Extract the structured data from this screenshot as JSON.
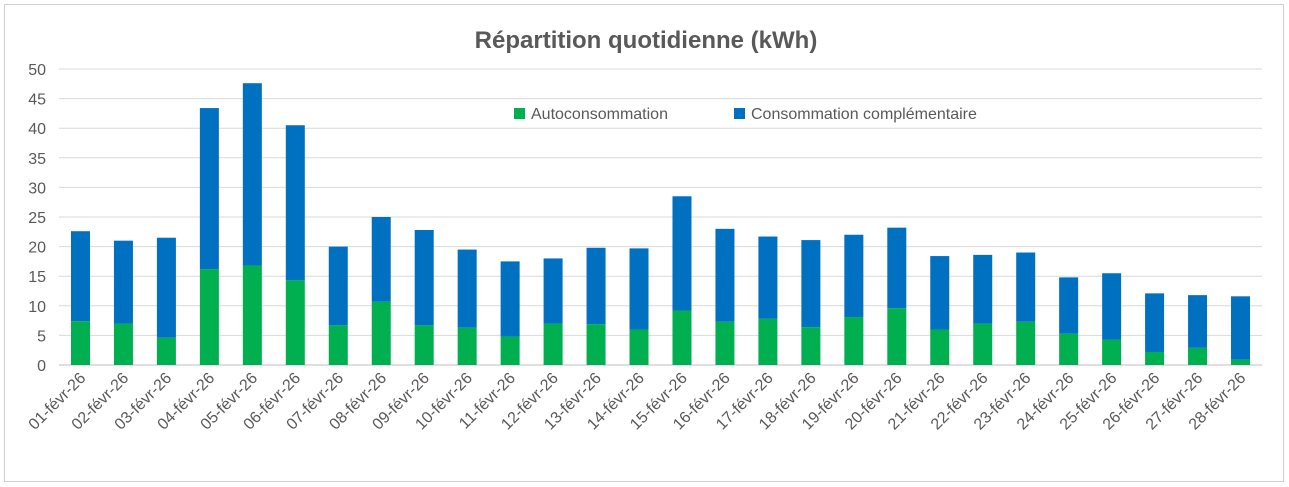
{
  "chart_data": {
    "type": "bar",
    "stacked": true,
    "title": "Répartition quotidienne (kWh)",
    "xlabel": "",
    "ylabel": "",
    "ylim": [
      0,
      50
    ],
    "yticks": [
      0,
      5,
      10,
      15,
      20,
      25,
      30,
      35,
      40,
      45,
      50
    ],
    "grid": true,
    "legend_position": "top-center",
    "categories": [
      "01-févr-26",
      "02-févr-26",
      "03-févr-26",
      "04-févr-26",
      "05-févr-26",
      "06-févr-26",
      "07-févr-26",
      "08-févr-26",
      "09-févr-26",
      "10-févr-26",
      "11-févr-26",
      "12-févr-26",
      "13-févr-26",
      "14-févr-26",
      "15-févr-26",
      "16-févr-26",
      "17-févr-26",
      "18-févr-26",
      "19-févr-26",
      "20-févr-26",
      "21-févr-26",
      "22-févr-26",
      "23-févr-26",
      "24-févr-26",
      "25-févr-26",
      "26-févr-26",
      "27-févr-26",
      "28-févr-26"
    ],
    "series": [
      {
        "name": "Autoconsommation",
        "color": "#00b050",
        "values": [
          7.4,
          7.0,
          4.6,
          16.2,
          16.8,
          14.3,
          6.7,
          10.7,
          6.7,
          6.3,
          4.8,
          7.0,
          6.9,
          6.0,
          9.2,
          7.3,
          7.8,
          6.4,
          8.1,
          9.6,
          6.0,
          7.0,
          7.3,
          5.3,
          4.3,
          2.2,
          2.9,
          0.9
        ]
      },
      {
        "name": "Consommation complémentaire",
        "color": "#0070c0",
        "values": [
          15.2,
          14.0,
          16.9,
          27.2,
          30.8,
          26.2,
          13.3,
          14.3,
          16.1,
          13.2,
          12.7,
          11.0,
          12.9,
          13.7,
          19.3,
          15.7,
          13.9,
          14.7,
          13.9,
          13.6,
          12.4,
          11.6,
          11.7,
          9.5,
          11.2,
          9.9,
          8.9,
          10.7
        ]
      }
    ]
  }
}
